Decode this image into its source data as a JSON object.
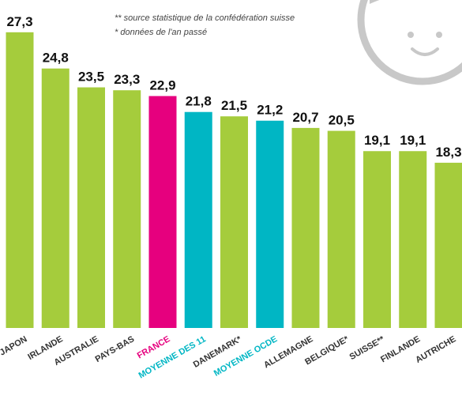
{
  "chart_data": {
    "type": "bar",
    "notes": [
      "** source statistique de la confédération suisse",
      "* données de l'an passé"
    ],
    "categories": [
      "JAPON",
      "IRLANDE",
      "AUSTRALIE",
      "PAYS-BAS",
      "FRANCE",
      "MOYENNE DES 11",
      "DANEMARK*",
      "MOYENNE OCDE",
      "ALLEMAGNE",
      "BELGIQUE*",
      "SUISSE**",
      "FINLANDE",
      "AUTRICHE"
    ],
    "values": [
      27.3,
      24.8,
      23.5,
      23.3,
      22.9,
      21.8,
      21.5,
      21.2,
      20.7,
      20.5,
      19.1,
      19.1,
      18.3
    ],
    "value_labels": [
      "27,3",
      "24,8",
      "23,5",
      "23,3",
      "22,9",
      "21,8",
      "21,5",
      "21,2",
      "20,7",
      "20,5",
      "19,1",
      "19,1",
      "18,3"
    ],
    "colors": [
      "#a5cc3c",
      "#a5cc3c",
      "#a5cc3c",
      "#a5cc3c",
      "#e6007e",
      "#00b6c4",
      "#a5cc3c",
      "#00b6c4",
      "#a5cc3c",
      "#a5cc3c",
      "#a5cc3c",
      "#a5cc3c",
      "#a5cc3c"
    ],
    "label_colors": [
      "#333333",
      "#333333",
      "#333333",
      "#333333",
      "#e6007e",
      "#00b6c4",
      "#333333",
      "#00b6c4",
      "#333333",
      "#333333",
      "#333333",
      "#333333",
      "#333333"
    ],
    "ylim": [
      6.9,
      28
    ]
  }
}
